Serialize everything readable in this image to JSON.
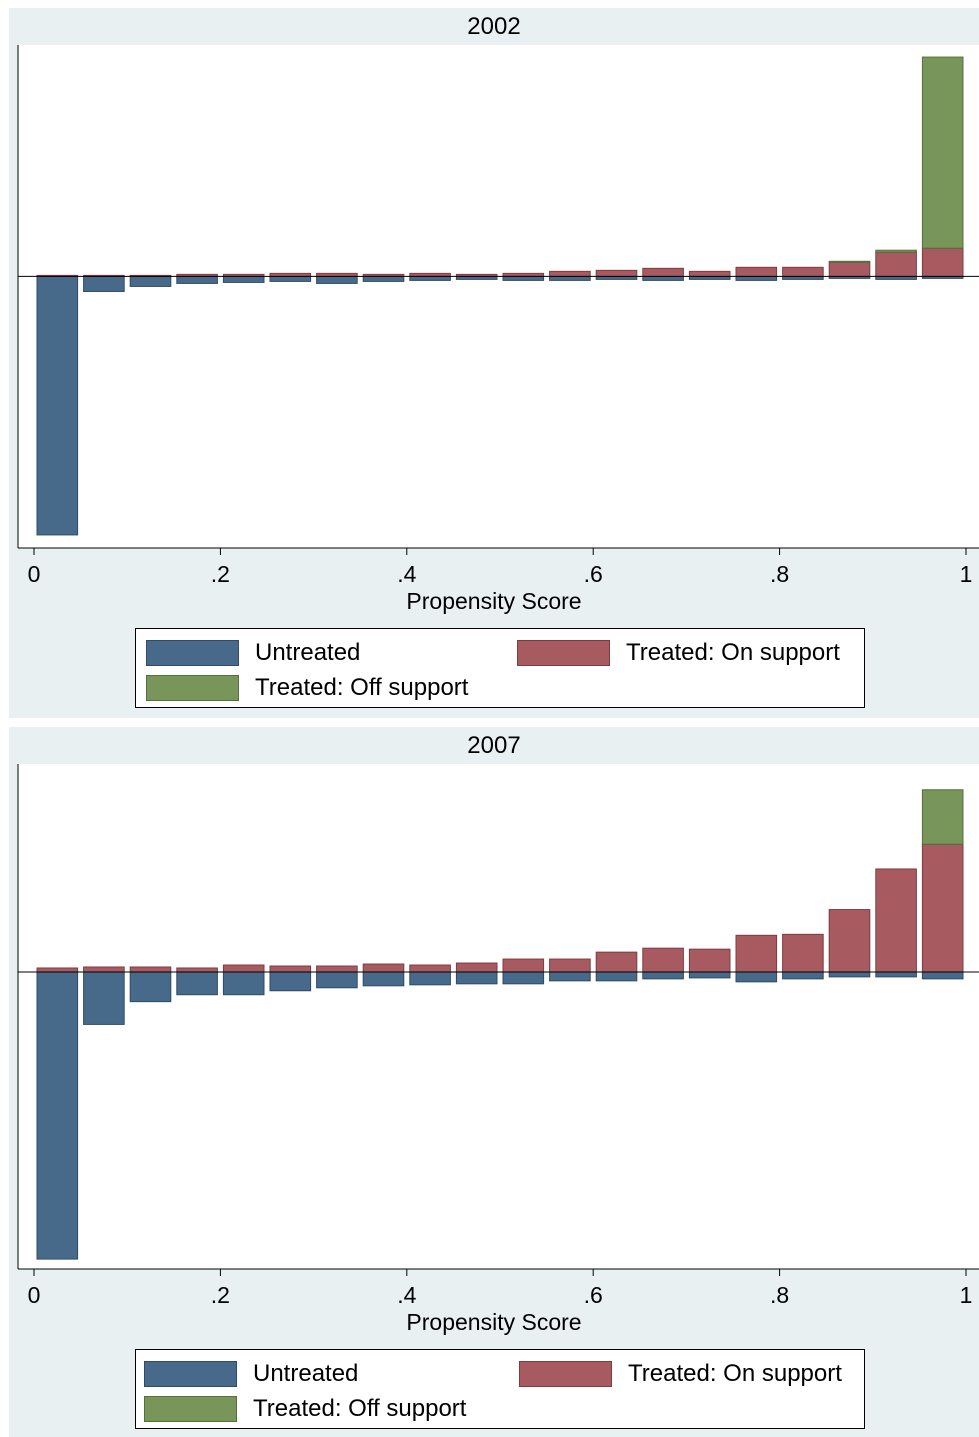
{
  "colors": {
    "untreated": "#476a8b",
    "on_support": "#a85a61",
    "off_support": "#78955a",
    "panel_bg": "#e9f0f2"
  },
  "legend": {
    "untreated": "Untreated",
    "on_support": "Treated: On support",
    "off_support": "Treated: Off support"
  },
  "chart_data": [
    {
      "type": "bar",
      "title": "2002",
      "xlabel": "Propensity Score",
      "xlim": [
        0,
        1
      ],
      "ylim": [
        -0.27,
        0.23
      ],
      "x_ticks": [
        "0",
        ".2",
        ".4",
        ".6",
        ".8",
        "1"
      ],
      "x_tick_values": [
        0,
        0.2,
        0.4,
        0.6,
        0.8,
        1
      ],
      "bin_centers": [
        0.025,
        0.075,
        0.125,
        0.175,
        0.225,
        0.275,
        0.325,
        0.375,
        0.425,
        0.475,
        0.525,
        0.575,
        0.625,
        0.675,
        0.725,
        0.775,
        0.825,
        0.875,
        0.925,
        0.975
      ],
      "series": [
        {
          "name": "Untreated",
          "values": [
            -0.257,
            -0.015,
            -0.01,
            -0.007,
            -0.006,
            -0.005,
            -0.007,
            -0.005,
            -0.004,
            -0.003,
            -0.004,
            -0.004,
            -0.003,
            -0.004,
            -0.003,
            -0.004,
            -0.003,
            -0.002,
            -0.003,
            -0.002
          ]
        },
        {
          "name": "Treated: On support",
          "values": [
            0.001,
            0.001,
            0.001,
            0.002,
            0.002,
            0.003,
            0.003,
            0.002,
            0.003,
            0.002,
            0.003,
            0.005,
            0.006,
            0.008,
            0.005,
            0.009,
            0.009,
            0.014,
            0.024,
            0.028
          ]
        },
        {
          "name": "Treated: Off support",
          "values": [
            0,
            0,
            0,
            0,
            0,
            0,
            0,
            0,
            0,
            0,
            0,
            0,
            0,
            0,
            0,
            0,
            0,
            0.001,
            0.002,
            0.19
          ]
        }
      ]
    },
    {
      "type": "bar",
      "title": "2007",
      "xlabel": "Propensity Score",
      "xlim": [
        0,
        1
      ],
      "ylim": [
        -0.3,
        0.21
      ],
      "x_ticks": [
        "0",
        ".2",
        ".4",
        ".6",
        ".8",
        "1"
      ],
      "x_tick_values": [
        0,
        0.2,
        0.4,
        0.6,
        0.8,
        1
      ],
      "bin_centers": [
        0.025,
        0.075,
        0.125,
        0.175,
        0.225,
        0.275,
        0.325,
        0.375,
        0.425,
        0.475,
        0.525,
        0.575,
        0.625,
        0.675,
        0.725,
        0.775,
        0.825,
        0.875,
        0.925,
        0.975
      ],
      "series": [
        {
          "name": "Untreated",
          "values": [
            -0.29,
            -0.053,
            -0.03,
            -0.023,
            -0.023,
            -0.019,
            -0.016,
            -0.014,
            -0.013,
            -0.012,
            -0.012,
            -0.009,
            -0.009,
            -0.007,
            -0.006,
            -0.01,
            -0.007,
            -0.005,
            -0.005,
            -0.007
          ]
        },
        {
          "name": "Treated: On support",
          "values": [
            0.004,
            0.005,
            0.005,
            0.004,
            0.007,
            0.006,
            0.006,
            0.008,
            0.007,
            0.009,
            0.013,
            0.013,
            0.02,
            0.024,
            0.023,
            0.037,
            0.038,
            0.063,
            0.104,
            0.129
          ]
        },
        {
          "name": "Treated: Off support",
          "values": [
            0,
            0,
            0,
            0,
            0,
            0,
            0,
            0,
            0,
            0,
            0,
            0,
            0,
            0,
            0,
            0,
            0,
            0,
            0,
            0.055
          ]
        }
      ]
    }
  ]
}
